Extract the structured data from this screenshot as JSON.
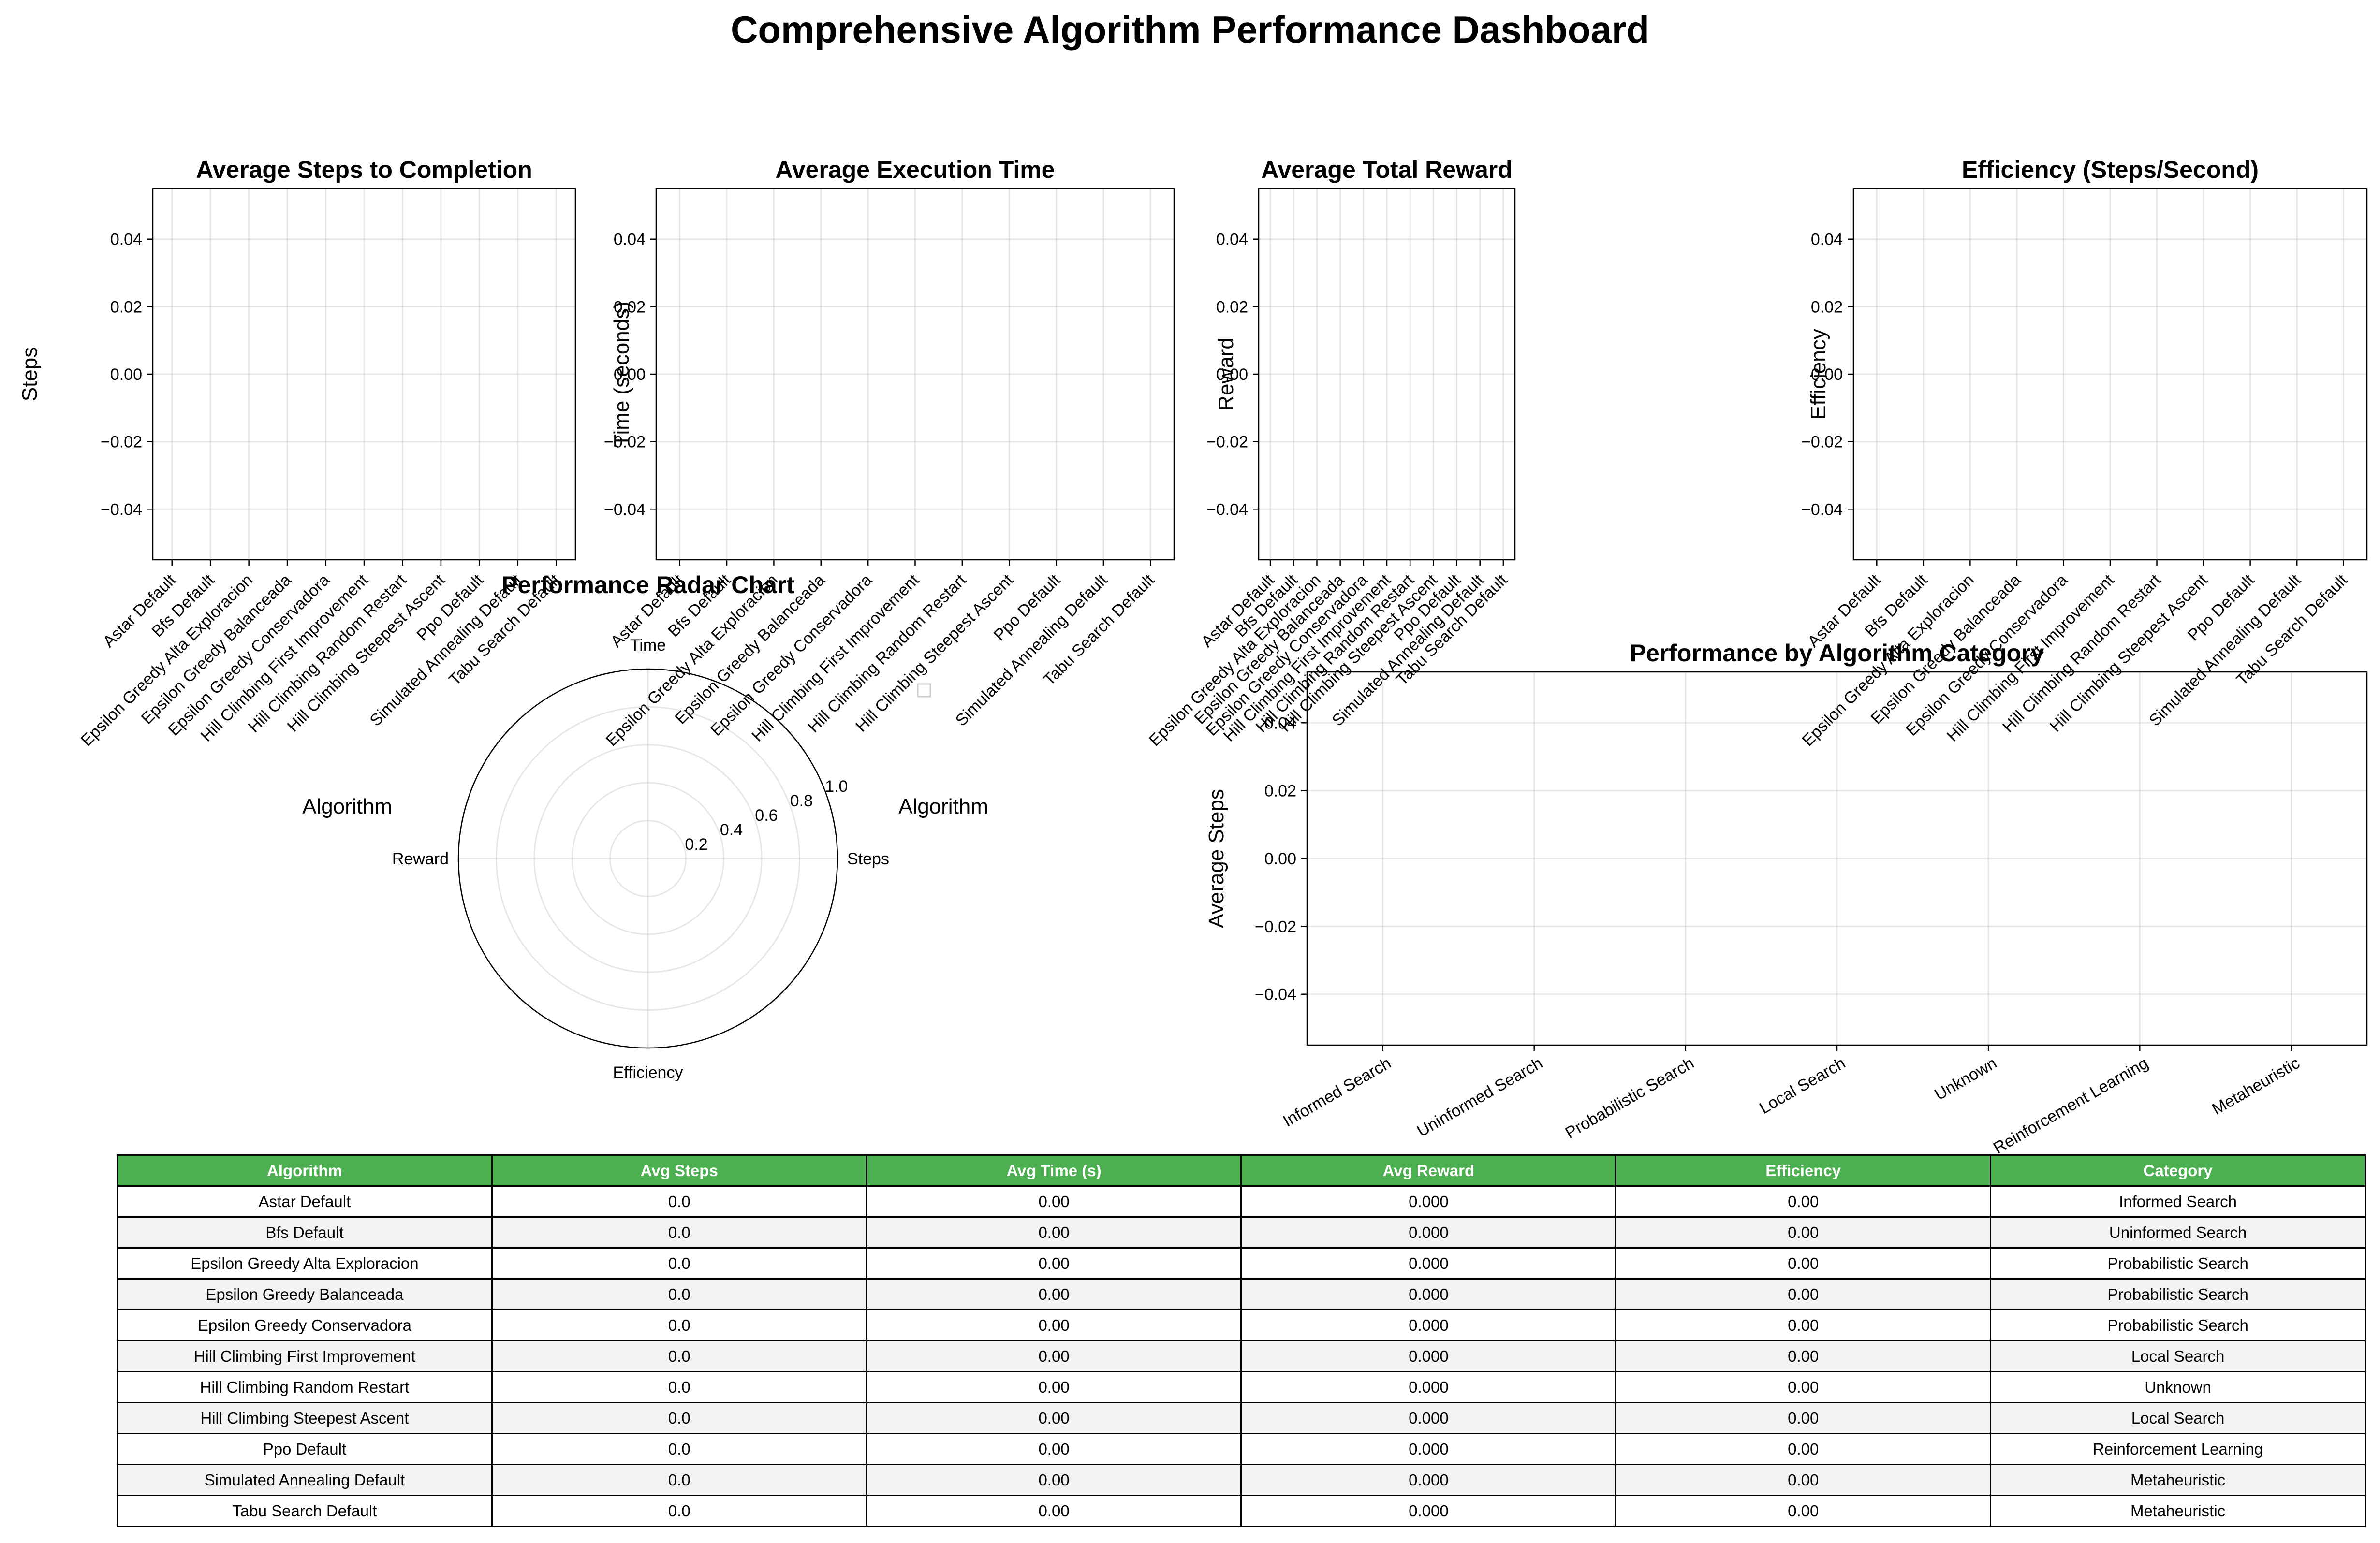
{
  "title": "Comprehensive Algorithm Performance Dashboard",
  "colors": {
    "header_bg": "#4caf50",
    "header_text": "#ffffff",
    "alt_row": "#f2f2f2",
    "grid": "#b0b0b0"
  },
  "algorithms": [
    "Astar Default",
    "Bfs Default",
    "Epsilon Greedy Alta Exploracion",
    "Epsilon Greedy Balanceada",
    "Epsilon Greedy Conservadora",
    "Hill Climbing First Improvement",
    "Hill Climbing Random Restart",
    "Hill Climbing Steepest Ascent",
    "Ppo Default",
    "Simulated Annealing Default",
    "Tabu Search Default"
  ],
  "chart_data": [
    {
      "type": "bar",
      "title": "Average Steps to Completion",
      "xlabel": "Algorithm",
      "ylabel": "Steps",
      "ylim": [
        -0.055,
        0.055
      ],
      "yticks": [
        "0.04",
        "0.02",
        "0.00",
        "−0.02",
        "−0.04"
      ],
      "grid": true,
      "values": [
        0,
        0,
        0,
        0,
        0,
        0,
        0,
        0,
        0,
        0,
        0
      ]
    },
    {
      "type": "bar",
      "title": "Average Execution Time",
      "xlabel": "Algorithm",
      "ylabel": "Time (seconds)",
      "ylim": [
        -0.055,
        0.055
      ],
      "yticks": [
        "0.04",
        "0.02",
        "0.00",
        "−0.02",
        "−0.04"
      ],
      "grid": true,
      "values": [
        0,
        0,
        0,
        0,
        0,
        0,
        0,
        0,
        0,
        0,
        0
      ]
    },
    {
      "type": "bar",
      "title": "Average Total Reward",
      "xlabel": "",
      "ylabel": "Reward",
      "ylim": [
        -0.055,
        0.055
      ],
      "yticks": [
        "0.04",
        "0.02",
        "0.00",
        "−0.02",
        "−0.04"
      ],
      "grid": true,
      "values": [
        0,
        0,
        0,
        0,
        0,
        0,
        0,
        0,
        0,
        0,
        0
      ]
    },
    {
      "type": "bar",
      "title": "Efficiency (Steps/Second)",
      "xlabel": "",
      "ylabel": "Efficiency",
      "ylim": [
        -0.055,
        0.055
      ],
      "yticks": [
        "0.04",
        "0.02",
        "0.00",
        "−0.02",
        "−0.04"
      ],
      "grid": true,
      "values": [
        0,
        0,
        0,
        0,
        0,
        0,
        0,
        0,
        0,
        0,
        0
      ]
    },
    {
      "type": "radar",
      "title": "Performance Radar Chart",
      "axes": [
        "Steps",
        "Time",
        "Reward",
        "Efficiency"
      ],
      "rticks": [
        "0.2",
        "0.4",
        "0.6",
        "0.8",
        "1.0"
      ],
      "rlim": [
        0,
        1.0
      ],
      "series": []
    },
    {
      "type": "bar",
      "title": "Performance by Algorithm Category",
      "ylabel": "Average Steps",
      "categories": [
        "Informed Search",
        "Uninformed Search",
        "Probabilistic Search",
        "Local Search",
        "Unknown",
        "Reinforcement Learning",
        "Metaheuristic"
      ],
      "ylim": [
        -0.055,
        0.055
      ],
      "yticks": [
        "0.04",
        "0.02",
        "0.00",
        "−0.02",
        "−0.04"
      ],
      "grid": true,
      "values": [
        0,
        0,
        0,
        0,
        0,
        0,
        0
      ]
    },
    {
      "type": "table",
      "columns": [
        "Algorithm",
        "Avg Steps",
        "Avg Time (s)",
        "Avg Reward",
        "Efficiency",
        "Category"
      ],
      "rows": [
        [
          "Astar Default",
          "0.0",
          "0.00",
          "0.000",
          "0.00",
          "Informed Search"
        ],
        [
          "Bfs Default",
          "0.0",
          "0.00",
          "0.000",
          "0.00",
          "Uninformed Search"
        ],
        [
          "Epsilon Greedy Alta Exploracion",
          "0.0",
          "0.00",
          "0.000",
          "0.00",
          "Probabilistic Search"
        ],
        [
          "Epsilon Greedy Balanceada",
          "0.0",
          "0.00",
          "0.000",
          "0.00",
          "Probabilistic Search"
        ],
        [
          "Epsilon Greedy Conservadora",
          "0.0",
          "0.00",
          "0.000",
          "0.00",
          "Probabilistic Search"
        ],
        [
          "Hill Climbing First Improvement",
          "0.0",
          "0.00",
          "0.000",
          "0.00",
          "Local Search"
        ],
        [
          "Hill Climbing Random Restart",
          "0.0",
          "0.00",
          "0.000",
          "0.00",
          "Unknown"
        ],
        [
          "Hill Climbing Steepest Ascent",
          "0.0",
          "0.00",
          "0.000",
          "0.00",
          "Local Search"
        ],
        [
          "Ppo Default",
          "0.0",
          "0.00",
          "0.000",
          "0.00",
          "Reinforcement Learning"
        ],
        [
          "Simulated Annealing Default",
          "0.0",
          "0.00",
          "0.000",
          "0.00",
          "Metaheuristic"
        ],
        [
          "Tabu Search Default",
          "0.0",
          "0.00",
          "0.000",
          "0.00",
          "Metaheuristic"
        ]
      ]
    }
  ]
}
